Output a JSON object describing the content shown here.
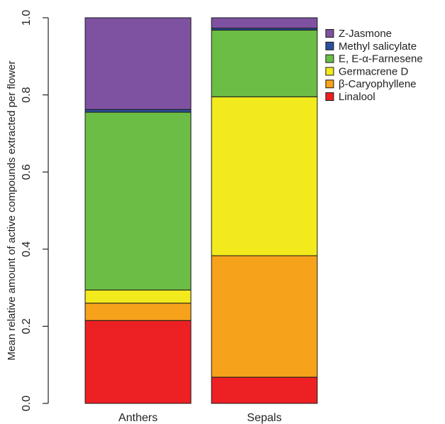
{
  "chart_data": {
    "type": "bar",
    "stacked": true,
    "categories": [
      "Anthers",
      "Sepals"
    ],
    "series": [
      {
        "name": "Linalool",
        "color": "#ed2024",
        "values": [
          0.215,
          0.068
        ]
      },
      {
        "name": "β-Caryophyllene",
        "color": "#f7a21b",
        "values": [
          0.045,
          0.315
        ]
      },
      {
        "name": "Germacrene D",
        "color": "#f2ea1c",
        "values": [
          0.034,
          0.412
        ]
      },
      {
        "name": "E, E-α-Farnesene",
        "color": "#6cbd45",
        "values": [
          0.461,
          0.173
        ]
      },
      {
        "name": "Methyl salicylate",
        "color": "#2b4f9c",
        "values": [
          0.007,
          0.005
        ]
      },
      {
        "name": "Z-Jasmone",
        "color": "#7e52a0",
        "values": [
          0.238,
          0.027
        ]
      }
    ],
    "ylabel": "Mean relative amount of active compounds extracted per flower",
    "xlabel": "",
    "ylim": [
      0,
      1
    ],
    "yticks": [
      "0.0",
      "0.2",
      "0.4",
      "0.6",
      "0.8",
      "1.0"
    ],
    "grid": false,
    "legend_position": "top-right"
  }
}
